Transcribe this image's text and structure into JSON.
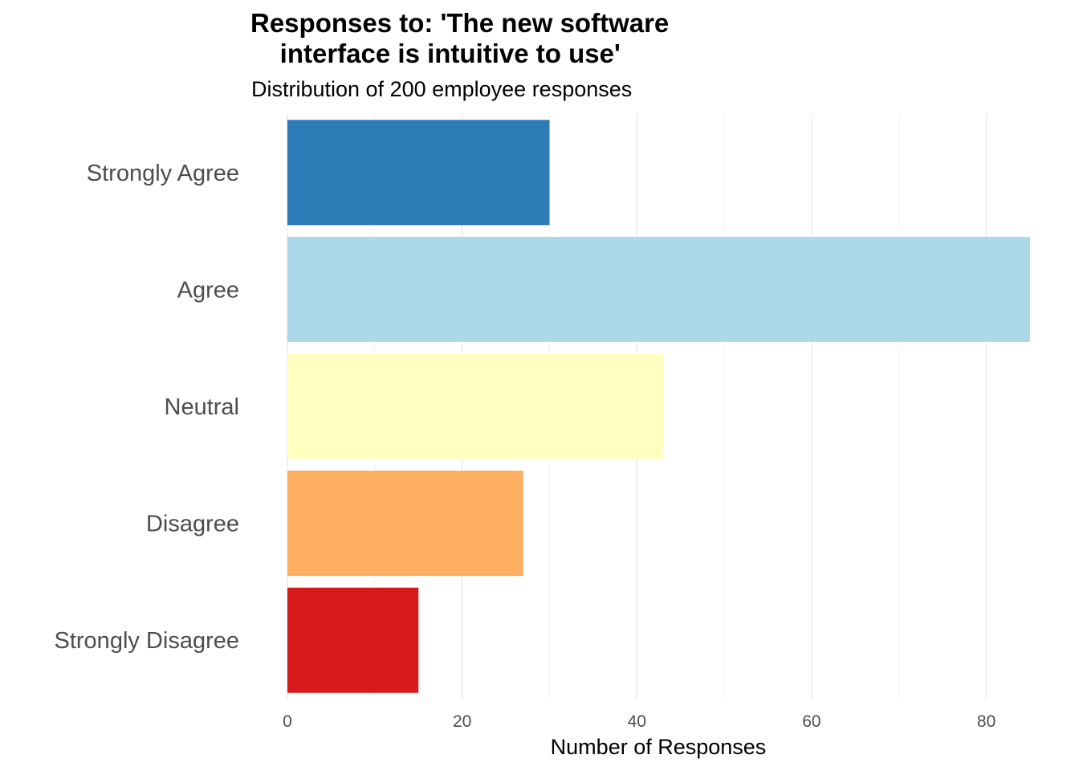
{
  "chart_data": {
    "type": "bar",
    "orientation": "horizontal",
    "title": "Responses to: 'The new software\n    interface is intuitive to use'",
    "subtitle": "Distribution of 200 employee responses",
    "xlabel": "Number of Responses",
    "ylabel": "",
    "xlim": [
      0,
      85
    ],
    "xticks": [
      0,
      20,
      40,
      60,
      80
    ],
    "grid": true,
    "categories": [
      "Strongly Agree",
      "Agree",
      "Neutral",
      "Disagree",
      "Strongly Disagree"
    ],
    "values": [
      30,
      85,
      43,
      27,
      15
    ],
    "colors": [
      "#2C7BB6",
      "#ABD9E9",
      "#FFFFBF",
      "#FDAE61",
      "#D7191C"
    ]
  }
}
